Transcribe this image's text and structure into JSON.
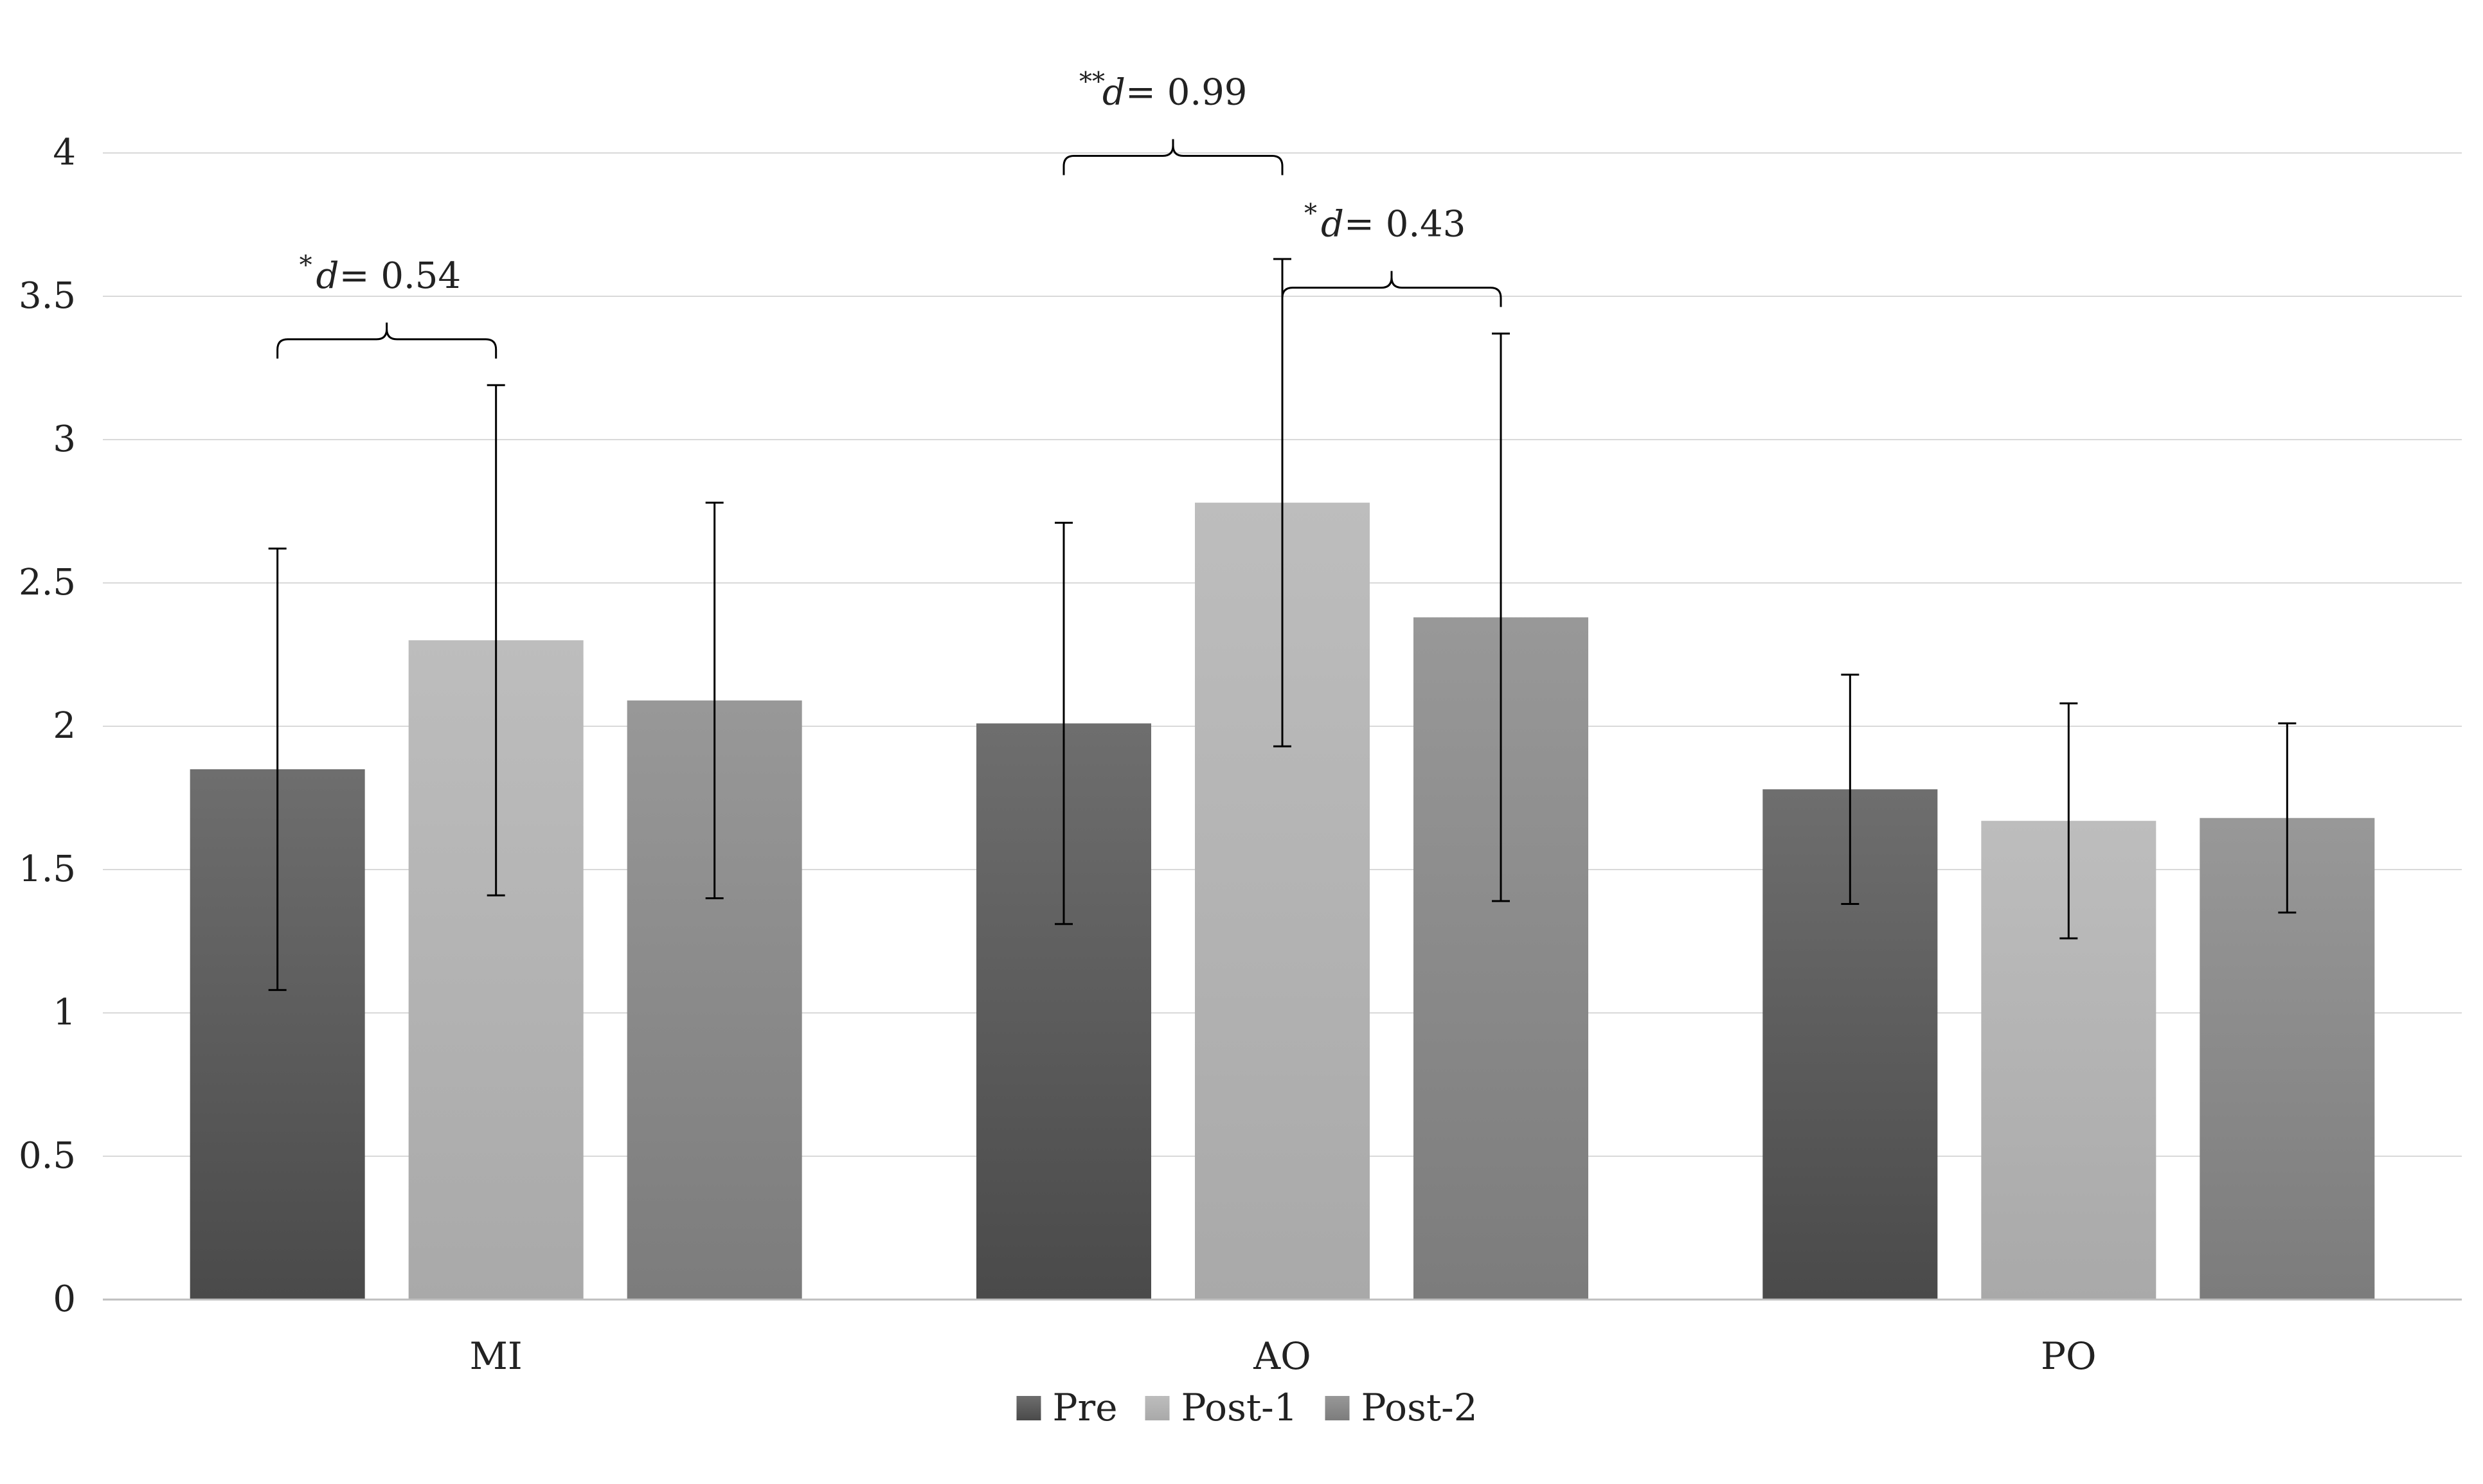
{
  "chart_data": {
    "type": "bar",
    "categories": [
      "MI",
      "AO",
      "PO"
    ],
    "series": [
      {
        "name": "Pre",
        "color": "#5a5a5a",
        "values": [
          1.85,
          2.01,
          1.78
        ],
        "errors": [
          0.77,
          0.7,
          0.4
        ]
      },
      {
        "name": "Post-1",
        "color": "#b4b4b4",
        "values": [
          2.3,
          2.78,
          1.67
        ],
        "errors": [
          0.89,
          0.85,
          0.41
        ]
      },
      {
        "name": "Post-2",
        "color": "#8c8c8c",
        "values": [
          2.09,
          2.38,
          1.68
        ],
        "errors": [
          0.69,
          0.99,
          0.33
        ]
      }
    ],
    "ylim": [
      0,
      4
    ],
    "yticks": [
      0,
      0.5,
      1,
      1.5,
      2,
      2.5,
      3,
      3.5,
      4
    ],
    "ytick_labels": [
      "0",
      "0.5",
      "1",
      "1.5",
      "2",
      "2.5",
      "3",
      "3.5",
      "4"
    ],
    "grid": true,
    "title": "",
    "xlabel": "",
    "ylabel": "",
    "legend_position": "bottom-center",
    "annotations": [
      {
        "category": "MI",
        "from_series": 0,
        "to_series": 1,
        "bracket_y": 3.35,
        "stars": "*",
        "d_label": "d",
        "value_text": "= 0.54"
      },
      {
        "category": "AO",
        "from_series": 0,
        "to_series": 1,
        "bracket_y": 3.99,
        "stars": "**",
        "d_label": "d",
        "value_text": "= 0.99"
      },
      {
        "category": "AO",
        "from_series": 1,
        "to_series": 2,
        "bracket_y": 3.53,
        "stars": "*",
        "d_label": "d",
        "value_text": "= 0.43"
      }
    ]
  }
}
